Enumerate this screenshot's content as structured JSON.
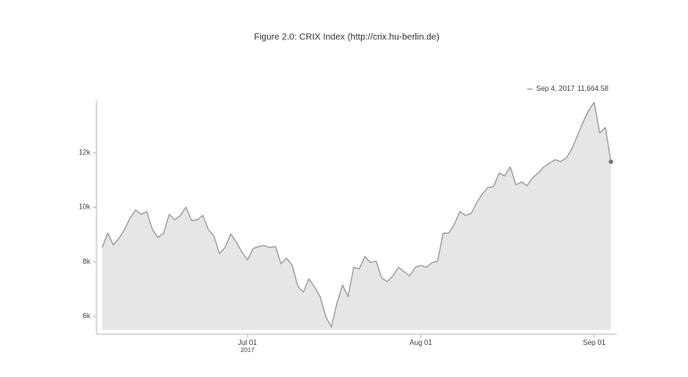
{
  "chart_data": {
    "type": "area",
    "title": "Figure 2.0: CRIX Index (http://crix.hu-berlin.de)",
    "hover_label": {
      "date": "Sep 4, 2017",
      "value": "11,664.58"
    },
    "line_color": "#9a9a9a",
    "fill_color": "#e6e6e6",
    "x": [
      "2017-06-05",
      "2017-06-06",
      "2017-06-07",
      "2017-06-08",
      "2017-06-09",
      "2017-06-10",
      "2017-06-11",
      "2017-06-12",
      "2017-06-13",
      "2017-06-14",
      "2017-06-15",
      "2017-06-16",
      "2017-06-17",
      "2017-06-18",
      "2017-06-19",
      "2017-06-20",
      "2017-06-21",
      "2017-06-22",
      "2017-06-23",
      "2017-06-24",
      "2017-06-25",
      "2017-06-26",
      "2017-06-27",
      "2017-06-28",
      "2017-06-29",
      "2017-06-30",
      "2017-07-01",
      "2017-07-02",
      "2017-07-03",
      "2017-07-04",
      "2017-07-05",
      "2017-07-06",
      "2017-07-07",
      "2017-07-08",
      "2017-07-09",
      "2017-07-10",
      "2017-07-11",
      "2017-07-12",
      "2017-07-13",
      "2017-07-14",
      "2017-07-15",
      "2017-07-16",
      "2017-07-17",
      "2017-07-18",
      "2017-07-19",
      "2017-07-20",
      "2017-07-21",
      "2017-07-22",
      "2017-07-23",
      "2017-07-24",
      "2017-07-25",
      "2017-07-26",
      "2017-07-27",
      "2017-07-28",
      "2017-07-29",
      "2017-07-30",
      "2017-07-31",
      "2017-08-01",
      "2017-08-02",
      "2017-08-03",
      "2017-08-04",
      "2017-08-05",
      "2017-08-06",
      "2017-08-07",
      "2017-08-08",
      "2017-08-09",
      "2017-08-10",
      "2017-08-11",
      "2017-08-12",
      "2017-08-13",
      "2017-08-14",
      "2017-08-15",
      "2017-08-16",
      "2017-08-17",
      "2017-08-18",
      "2017-08-19",
      "2017-08-20",
      "2017-08-21",
      "2017-08-22",
      "2017-08-23",
      "2017-08-24",
      "2017-08-25",
      "2017-08-26",
      "2017-08-27",
      "2017-08-28",
      "2017-08-29",
      "2017-08-30",
      "2017-08-31",
      "2017-09-01",
      "2017-09-02",
      "2017-09-03",
      "2017-09-04"
    ],
    "values": [
      8525,
      9050,
      8620,
      8850,
      9180,
      9600,
      9900,
      9740,
      9840,
      9180,
      8890,
      9050,
      9740,
      9540,
      9700,
      10000,
      9510,
      9540,
      9700,
      9180,
      8950,
      8300,
      8525,
      9020,
      8720,
      8360,
      8070,
      8490,
      8560,
      8590,
      8525,
      8560,
      7930,
      8130,
      7870,
      7110,
      6890,
      7380,
      7080,
      6720,
      6000,
      5610,
      6490,
      7150,
      6720,
      7800,
      7740,
      8200,
      7970,
      8030,
      7410,
      7280,
      7480,
      7800,
      7640,
      7480,
      7800,
      7870,
      7800,
      7970,
      8030,
      9050,
      9050,
      9380,
      9840,
      9700,
      9770,
      10160,
      10490,
      10720,
      10750,
      11250,
      11150,
      11480,
      10820,
      10920,
      10790,
      11080,
      11250,
      11480,
      11610,
      11740,
      11670,
      11800,
      12130,
      12620,
      13110,
      13540,
      13840,
      12720,
      12920,
      11664.58
    ],
    "xlim": [
      "2017-06-04",
      "2017-09-05"
    ],
    "xticks": [
      {
        "value": "2017-07-01",
        "label": "Jul 01",
        "sublabel": "2017"
      },
      {
        "value": "2017-08-01",
        "label": "Aug 01"
      },
      {
        "value": "2017-09-01",
        "label": "Sep 01"
      }
    ],
    "ylim": [
      5350,
      13900
    ],
    "yticks": [
      {
        "value": 6000,
        "label": "6k"
      },
      {
        "value": 8000,
        "label": "8k"
      },
      {
        "value": 10000,
        "label": "10k"
      },
      {
        "value": 12000,
        "label": "12k"
      }
    ]
  }
}
